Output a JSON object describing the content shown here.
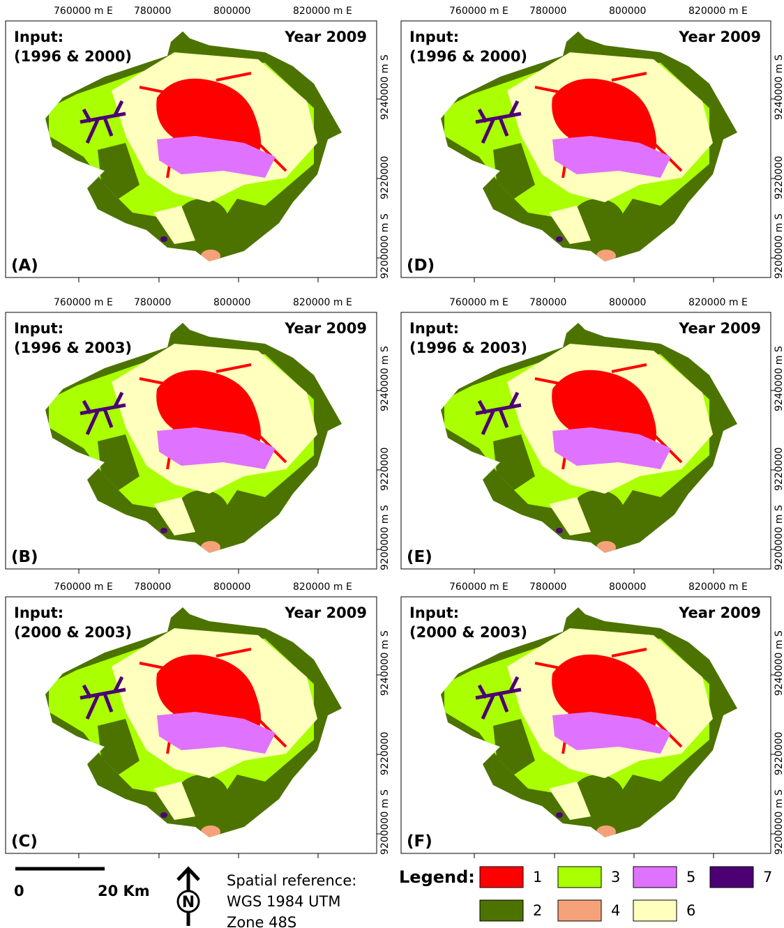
{
  "panels": [
    {
      "label": "(A)",
      "input_title": "Input:",
      "input_years": "(1996 & 2000)",
      "year": "Year 2009",
      "x_ticks": [
        "760000 m E",
        "780000",
        "800000",
        "820000 m E"
      ],
      "y_ticks": [
        "9240000 m S",
        "9220000",
        "9200000 m S"
      ]
    },
    {
      "label": "(D)",
      "input_title": "Input:",
      "input_years": "(1996 & 2000)",
      "year": "Year 2009",
      "x_ticks": [
        "760000 m E",
        "780000",
        "800000",
        "820000 m E"
      ],
      "y_ticks": [
        "9240000 m S",
        "9220000",
        "9200000 m S"
      ]
    },
    {
      "label": "(B)",
      "input_title": "Input:",
      "input_years": "(1996 & 2003)",
      "year": "Year 2009",
      "x_ticks": [
        "760000 m E",
        "780000",
        "800000",
        "820000 m E"
      ],
      "y_ticks": [
        "9240000 m S",
        "9220000",
        "9200000 m S"
      ]
    },
    {
      "label": "(E)",
      "input_title": "Input:",
      "input_years": "(1996 & 2003)",
      "year": "Year 2009",
      "x_ticks": [
        "760000 m E",
        "780000",
        "800000",
        "820000 m E"
      ],
      "y_ticks": [
        "9240000 m S",
        "9220000",
        "9200000 m S"
      ]
    },
    {
      "label": "(C)",
      "input_title": "Input:",
      "input_years": "(2000 & 2003)",
      "year": "Year 2009",
      "x_ticks": [
        "760000 m E",
        "780000",
        "800000",
        "820000 m E"
      ],
      "y_ticks": [
        "9240000 m S",
        "9220000",
        "9200000 m S"
      ]
    },
    {
      "label": "(F)",
      "input_title": "Input:",
      "input_years": "(2000 & 2003)",
      "year": "Year 2009",
      "x_ticks": [
        "760000 m E",
        "780000",
        "800000",
        "820000 m E"
      ],
      "y_ticks": [
        "9240000 m S",
        "9220000",
        "9200000 m S"
      ]
    }
  ],
  "scale_bar": {
    "start": "0",
    "end": "20 Km"
  },
  "north_arrow": "N",
  "spatial_reference": [
    "Spatial reference:",
    "WGS 1984 UTM",
    "Zone 48S"
  ],
  "legend": {
    "title": "Legend:",
    "items": [
      {
        "label": "1",
        "color": "#ff0000"
      },
      {
        "label": "2",
        "color": "#4c7300"
      },
      {
        "label": "3",
        "color": "#aaff00"
      },
      {
        "label": "4",
        "color": "#f5a27a"
      },
      {
        "label": "5",
        "color": "#df73ff"
      },
      {
        "label": "6",
        "color": "#ffffbe"
      },
      {
        "label": "7",
        "color": "#4c0073"
      }
    ]
  }
}
